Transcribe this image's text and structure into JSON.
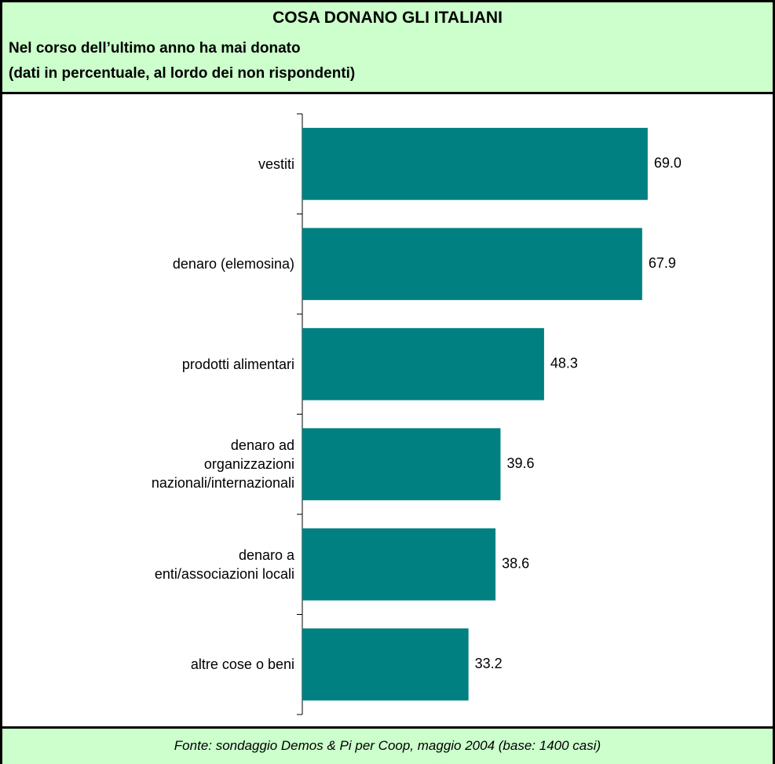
{
  "chart_data": {
    "type": "bar",
    "orientation": "horizontal",
    "title": "COSA DONANO GLI ITALIANI",
    "subtitle": [
      "Nel corso dell’ultimo anno ha mai donato",
      "(dati in percentuale, al lordo dei non rispondenti)"
    ],
    "categories": [
      "vestiti",
      "denaro (elemosina)",
      "prodotti alimentari",
      "denaro ad\norganizzazioni\nnazionali/internazionali",
      "denaro a\nenti/associazioni locali",
      "altre cose o beni"
    ],
    "values": [
      69.0,
      67.9,
      48.3,
      39.6,
      38.6,
      33.2
    ],
    "value_labels": [
      "69.0",
      "67.9",
      "48.3",
      "39.6",
      "38.6",
      "33.2"
    ],
    "color": "#008080",
    "xlim": [
      0,
      80
    ],
    "source": "Fonte: sondaggio Demos & Pi per Coop, maggio 2004 (base: 1400 casi)"
  }
}
